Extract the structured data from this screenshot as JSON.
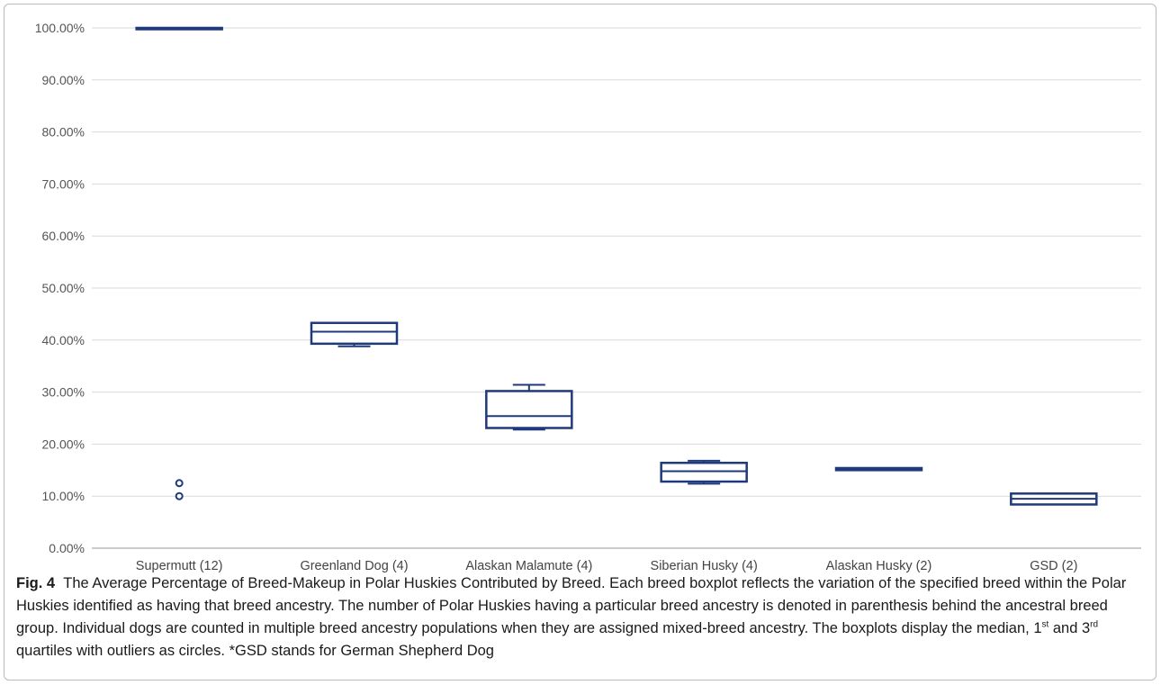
{
  "chart_data": {
    "type": "boxplot",
    "title": "",
    "xlabel": "",
    "ylabel": "",
    "ylim": [
      0,
      100
    ],
    "y_tick_values": [
      0,
      10,
      20,
      30,
      40,
      50,
      60,
      70,
      80,
      90,
      100
    ],
    "y_tick_labels": [
      "0.00%",
      "10.00%",
      "20.00%",
      "30.00%",
      "40.00%",
      "50.00%",
      "60.00%",
      "70.00%",
      "80.00%",
      "90.00%",
      "100.00%"
    ],
    "grid": true,
    "color": "#1f3a7a",
    "categories": [
      "Supermutt (12)",
      "Greenland Dog (4)",
      "Alaskan Malamute (4)",
      "Siberian Husky (4)",
      "Alaskan Husky (2)",
      "GSD (2)"
    ],
    "boxes": [
      {
        "category": "Supermutt (12)",
        "min": 100,
        "q1": 100,
        "median": 100,
        "q3": 100,
        "max": 100,
        "outliers": [
          12.5,
          10
        ]
      },
      {
        "category": "Greenland Dog (4)",
        "min": 38.8,
        "q1": 39.3,
        "median": 41.6,
        "q3": 43.3,
        "max": 43.3,
        "outliers": []
      },
      {
        "category": "Alaskan Malamute (4)",
        "min": 22.8,
        "q1": 23.1,
        "median": 25.4,
        "q3": 30.2,
        "max": 31.4,
        "outliers": []
      },
      {
        "category": "Siberian Husky (4)",
        "min": 12.4,
        "q1": 12.8,
        "median": 14.8,
        "q3": 16.4,
        "max": 16.8,
        "outliers": []
      },
      {
        "category": "Alaskan Husky (2)",
        "min": 15.0,
        "q1": 15.0,
        "median": 15.2,
        "q3": 15.4,
        "max": 15.4,
        "outliers": []
      },
      {
        "category": "GSD (2)",
        "min": 8.4,
        "q1": 8.4,
        "median": 9.5,
        "q3": 10.5,
        "max": 10.5,
        "outliers": []
      }
    ]
  },
  "caption": {
    "fig_label": "Fig. 4",
    "text_1": "The Average Percentage of Breed-Makeup in Polar Huskies Contributed by Breed. Each breed boxplot reflects the variation of the specified breed within the Polar Huskies identified as having that breed ancestry. The number of Polar Huskies having a particular breed ancestry is denoted in parenthesis behind the ancestral breed group. Individual dogs are counted in multiple breed ancestry populations when they are assigned mixed-breed ancestry. The boxplots display the median, 1",
    "sup_1": "st",
    "text_2": " and 3",
    "sup_2": "rd",
    "text_3": " quartiles with outliers as circles. *GSD stands for German Shepherd Dog"
  }
}
